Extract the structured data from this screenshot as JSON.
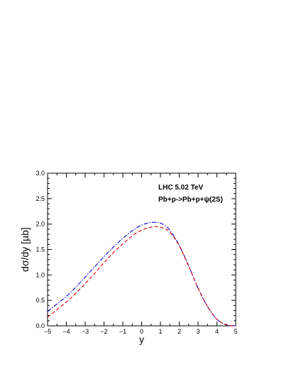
{
  "chart_data": {
    "type": "line",
    "title": "",
    "xlabel": "y",
    "ylabel": "dσ/dy [µb]",
    "xlim": [
      -5,
      5
    ],
    "ylim": [
      0.0,
      3.0
    ],
    "xticks": [
      -5,
      -4,
      -3,
      -2,
      -1,
      0,
      1,
      2,
      3,
      4,
      5
    ],
    "yticks": [
      0.0,
      0.5,
      1.0,
      1.5,
      2.0,
      2.5,
      3.0
    ],
    "ytick_labels": [
      "0.0",
      "0.5",
      "1.0",
      "1.5",
      "2.0",
      "2.5",
      "3.0"
    ],
    "grid": false,
    "annotations": [
      "LHC 5.02 TeV",
      "Pb+p->Pb+p+ψ(2S)"
    ],
    "series": [
      {
        "style": "dash-dot",
        "color": "#0000cc",
        "x": [
          -5,
          -4.5,
          -4,
          -3.5,
          -3,
          -2.5,
          -2,
          -1.5,
          -1,
          -0.5,
          0,
          0.5,
          1,
          1.5,
          2,
          2.5,
          3,
          3.5,
          4,
          4.5,
          5
        ],
        "y": [
          0.28,
          0.43,
          0.58,
          0.76,
          0.96,
          1.16,
          1.36,
          1.55,
          1.72,
          1.87,
          1.98,
          2.03,
          2.02,
          1.88,
          1.58,
          1.18,
          0.74,
          0.38,
          0.13,
          0.02,
          0.0
        ]
      },
      {
        "style": "dash",
        "color": "#dd0000",
        "x": [
          -5,
          -4.5,
          -4,
          -3.5,
          -3,
          -2.5,
          -2,
          -1.5,
          -1,
          -0.5,
          0,
          0.5,
          1,
          1.5,
          2,
          2.5,
          3,
          3.5,
          4,
          4.5,
          5
        ],
        "y": [
          0.17,
          0.32,
          0.47,
          0.64,
          0.83,
          1.03,
          1.24,
          1.44,
          1.61,
          1.77,
          1.88,
          1.94,
          1.94,
          1.84,
          1.57,
          1.17,
          0.74,
          0.38,
          0.13,
          0.02,
          0.0
        ]
      }
    ]
  }
}
